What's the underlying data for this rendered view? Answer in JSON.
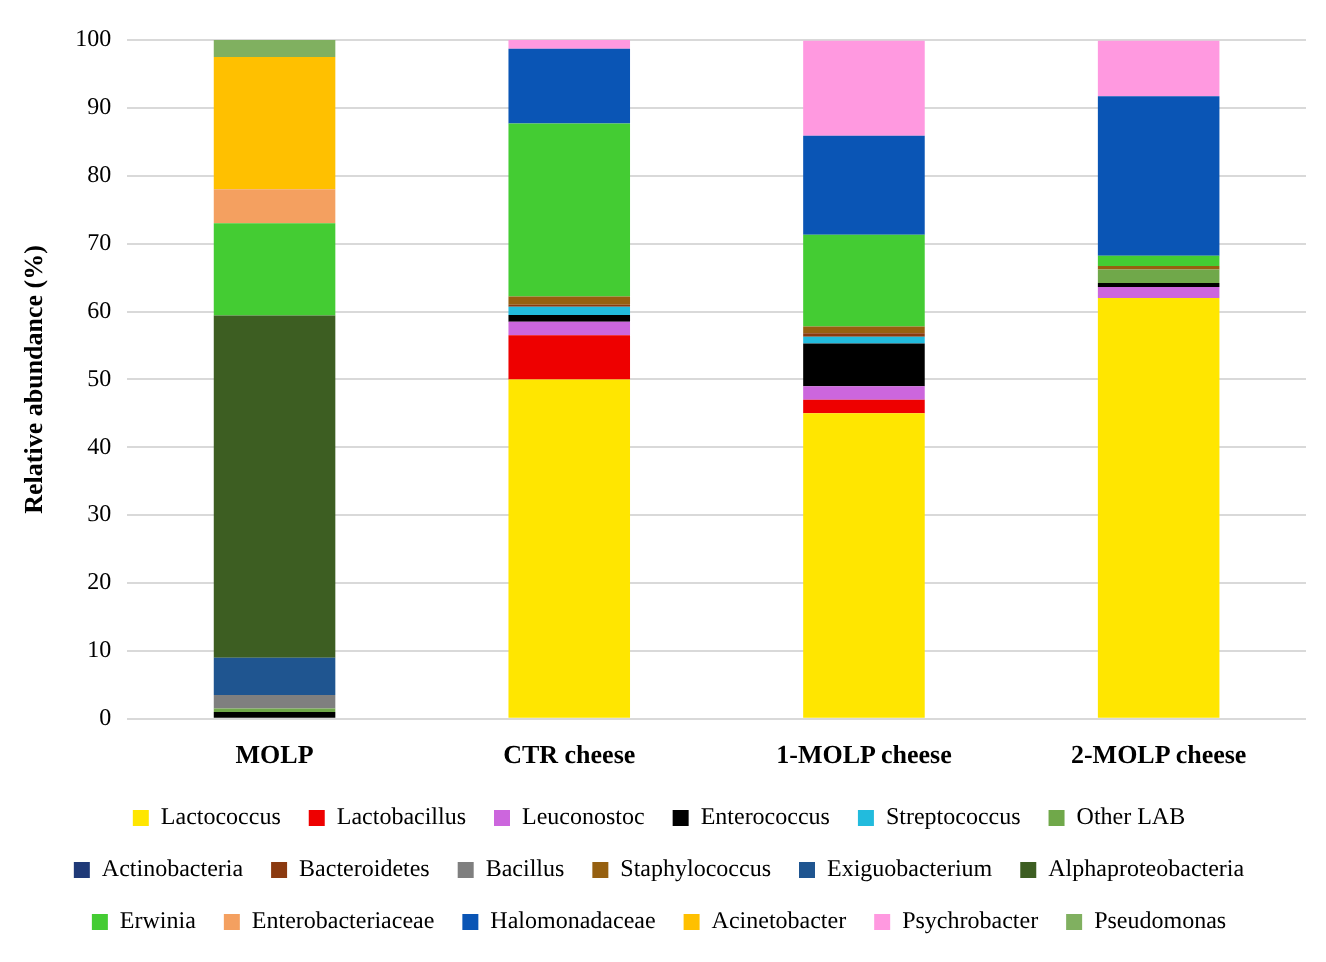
{
  "chart_data": {
    "type": "bar",
    "stacked": true,
    "ylabel": "Relative abundance (%)",
    "categories": [
      "MOLP",
      "CTR cheese",
      "1-MOLP cheese",
      "2-MOLP cheese"
    ],
    "ylim": [
      0,
      100
    ],
    "yticks": [
      0,
      10,
      20,
      30,
      40,
      50,
      60,
      70,
      80,
      90,
      100
    ],
    "grid": "y",
    "legend": "bottom",
    "series": [
      {
        "name": "Lactococcus",
        "color": "#ffe600",
        "values": [
          0,
          50,
          45,
          62
        ]
      },
      {
        "name": "Lactobacillus",
        "color": "#ee0000",
        "values": [
          0,
          6.5,
          2,
          0
        ]
      },
      {
        "name": "Leuconostoc",
        "color": "#cc66dd",
        "values": [
          0,
          2,
          2,
          1.6
        ]
      },
      {
        "name": "Enterococcus",
        "color": "#000000",
        "values": [
          1,
          1,
          6.3,
          0.6
        ]
      },
      {
        "name": "Streptococcus",
        "color": "#22bbdd",
        "values": [
          0,
          1.2,
          1,
          0
        ]
      },
      {
        "name": "Other LAB",
        "color": "#70a84a",
        "values": [
          0.5,
          0,
          0,
          2
        ]
      },
      {
        "name": "Actinobacteria",
        "color": "#1f3a78",
        "values": [
          0,
          0,
          0,
          0
        ]
      },
      {
        "name": "Bacteroidetes",
        "color": "#8b3a10",
        "values": [
          0,
          0.3,
          0.5,
          0
        ]
      },
      {
        "name": "Bacillus",
        "color": "#7f7f7f",
        "values": [
          2,
          0,
          0,
          0
        ]
      },
      {
        "name": "Staphylococcus",
        "color": "#966010",
        "values": [
          0,
          1.2,
          1,
          0.5
        ]
      },
      {
        "name": "Exiguobacterium",
        "color": "#1f5590",
        "values": [
          5.5,
          0,
          0,
          0
        ]
      },
      {
        "name": "Alphaproteobacteria",
        "color": "#3d5e22",
        "values": [
          50.4,
          0,
          0,
          0
        ]
      },
      {
        "name": "Erwinia",
        "color": "#44cc33",
        "values": [
          13.6,
          25.5,
          13.5,
          1.5
        ]
      },
      {
        "name": "Enterobacteriaceae",
        "color": "#f4a060",
        "values": [
          5,
          0,
          0,
          0
        ]
      },
      {
        "name": "Halomonadaceae",
        "color": "#0a55b5",
        "values": [
          0,
          11,
          14.6,
          23.5
        ]
      },
      {
        "name": "Acinetobacter",
        "color": "#ffc000",
        "values": [
          19.5,
          0,
          0,
          0
        ]
      },
      {
        "name": "Psychrobacter",
        "color": "#ff99e0",
        "values": [
          0,
          1.3,
          14,
          8.2
        ]
      },
      {
        "name": "Pseudomonas",
        "color": "#80b060",
        "values": [
          2.5,
          0,
          0,
          0
        ]
      }
    ]
  }
}
